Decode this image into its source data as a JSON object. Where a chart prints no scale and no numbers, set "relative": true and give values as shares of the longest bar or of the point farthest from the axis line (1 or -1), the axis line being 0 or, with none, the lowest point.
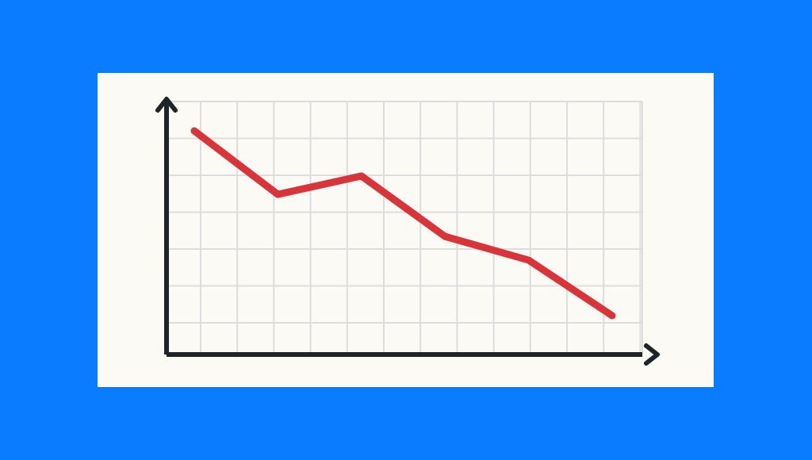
{
  "chart_data": {
    "type": "line",
    "relative": true,
    "categories": [
      null,
      null,
      null,
      null,
      null,
      null
    ],
    "series": [
      {
        "color": "#d9343a",
        "values": [
          1,
          0.716,
          0.798,
          0.528,
          0.422,
          0.174
        ]
      }
    ],
    "grid": true,
    "marker": "none",
    "line_style": "solid"
  }
}
